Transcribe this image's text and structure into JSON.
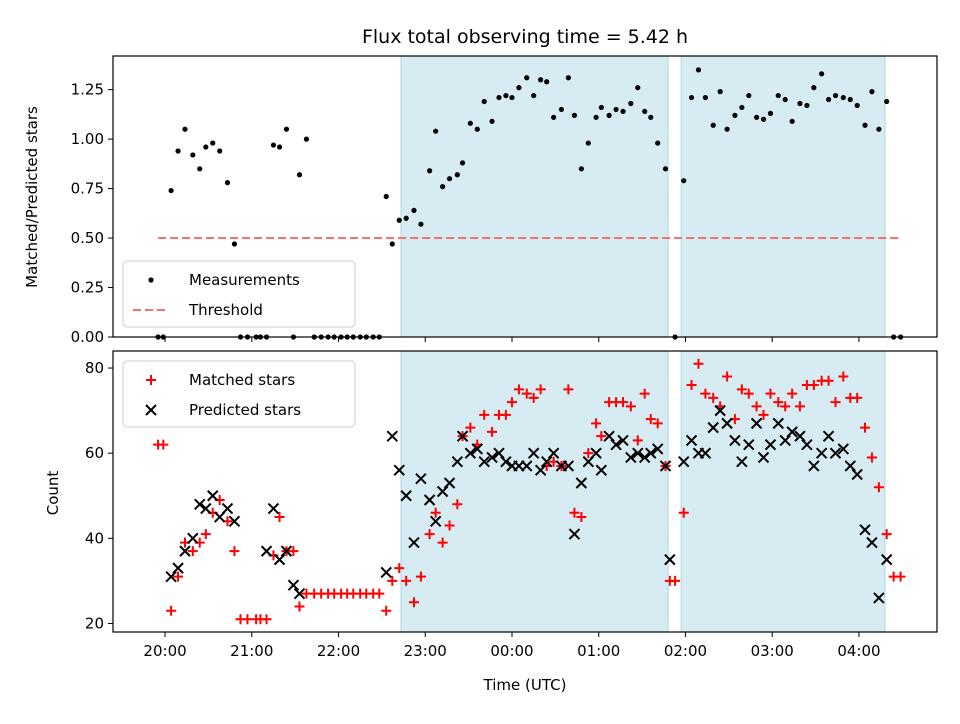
{
  "chart_data": [
    {
      "type": "scatter",
      "title": "Flux total observing time = 5.42 h",
      "xlabel": "",
      "ylabel": "Matched/Predicted stars",
      "xlim": [
        19.4,
        28.9
      ],
      "ylim": [
        0,
        1.42
      ],
      "y_ticks": [
        0,
        0.25,
        0.5,
        0.75,
        1.0,
        1.25
      ],
      "y_tick_labels": [
        "0.00",
        "0.25",
        "0.50",
        "0.75",
        "1.00",
        "1.25"
      ],
      "shaded_intervals": [
        [
          22.72,
          25.8
        ],
        [
          25.95,
          28.3
        ]
      ],
      "legend_position": "lower-left",
      "series": [
        {
          "name": "Measurements",
          "marker": "dot",
          "color": "#000000",
          "x": [
            19.92,
            19.98,
            20.07,
            20.15,
            20.23,
            20.32,
            20.4,
            20.47,
            20.55,
            20.63,
            20.72,
            20.8,
            20.87,
            20.95,
            21.05,
            21.1,
            21.17,
            21.25,
            21.32,
            21.4,
            21.48,
            21.55,
            21.63,
            21.72,
            21.8,
            21.88,
            21.95,
            22.03,
            22.1,
            22.17,
            22.25,
            22.32,
            22.4,
            22.47,
            22.55,
            22.62,
            22.7,
            22.78,
            22.87,
            22.95,
            23.05,
            23.12,
            23.2,
            23.28,
            23.37,
            23.43,
            23.52,
            23.6,
            23.68,
            23.77,
            23.85,
            23.93,
            24.0,
            24.08,
            24.17,
            24.25,
            24.33,
            24.4,
            24.48,
            24.57,
            24.65,
            24.72,
            24.8,
            24.88,
            24.97,
            25.03,
            25.12,
            25.2,
            25.28,
            25.37,
            25.45,
            25.53,
            25.6,
            25.68,
            25.77,
            25.88,
            25.98,
            26.07,
            26.15,
            26.23,
            26.32,
            26.4,
            26.48,
            26.57,
            26.65,
            26.73,
            26.82,
            26.9,
            26.98,
            27.07,
            27.15,
            27.23,
            27.32,
            27.4,
            27.48,
            27.57,
            27.65,
            27.73,
            27.82,
            27.9,
            27.98,
            28.07,
            28.15,
            28.23,
            28.32,
            28.4,
            28.48
          ],
          "y": [
            0,
            0,
            0.74,
            0.94,
            1.05,
            0.92,
            0.85,
            0.96,
            0.98,
            0.94,
            0.78,
            0.47,
            0,
            0,
            0,
            0,
            0,
            0.97,
            0.96,
            1.05,
            0,
            0.82,
            1.0,
            0,
            0,
            0,
            0,
            0,
            0,
            0,
            0,
            0,
            0,
            0,
            0.71,
            0.47,
            0.59,
            0.6,
            0.64,
            0.57,
            0.84,
            1.04,
            0.76,
            0.8,
            0.82,
            0.88,
            1.08,
            1.05,
            1.19,
            1.09,
            1.21,
            1.22,
            1.21,
            1.26,
            1.31,
            1.22,
            1.3,
            1.29,
            1.11,
            1.15,
            1.31,
            1.12,
            0.85,
            0.98,
            1.11,
            1.16,
            1.12,
            1.15,
            1.14,
            1.18,
            1.26,
            1.14,
            1.11,
            0.98,
            0.85,
            0,
            0.79,
            1.21,
            1.35,
            1.21,
            1.07,
            1.24,
            1.05,
            1.12,
            1.16,
            1.22,
            1.11,
            1.1,
            1.13,
            1.22,
            1.2,
            1.09,
            1.18,
            1.17,
            1.26,
            1.33,
            1.2,
            1.22,
            1.21,
            1.2,
            1.17,
            1.07,
            1.24,
            1.05,
            1.19,
            0,
            0
          ]
        },
        {
          "name": "Threshold",
          "line_style": "dashed",
          "color": "#f27272",
          "x": [
            19.92,
            28.48
          ],
          "y": [
            0.5,
            0.5
          ]
        }
      ]
    },
    {
      "type": "scatter",
      "title": "",
      "xlabel": "Time (UTC)",
      "ylabel": "Count",
      "xlim": [
        19.4,
        28.9
      ],
      "ylim": [
        18,
        84
      ],
      "y_ticks": [
        20,
        40,
        60,
        80
      ],
      "y_tick_labels": [
        "20",
        "40",
        "60",
        "80"
      ],
      "x_ticks": [
        20,
        21,
        22,
        23,
        24,
        25,
        26,
        27,
        28
      ],
      "x_tick_labels": [
        "20:00",
        "21:00",
        "22:00",
        "23:00",
        "00:00",
        "01:00",
        "02:00",
        "03:00",
        "04:00"
      ],
      "shaded_intervals": [
        [
          22.72,
          25.8
        ],
        [
          25.95,
          28.3
        ]
      ],
      "legend_position": "upper-left",
      "series": [
        {
          "name": "Matched stars",
          "marker": "plus",
          "color": "#ff0000",
          "x": [
            19.92,
            19.98,
            20.07,
            20.15,
            20.23,
            20.32,
            20.4,
            20.47,
            20.55,
            20.63,
            20.72,
            20.8,
            20.87,
            20.95,
            21.05,
            21.1,
            21.17,
            21.25,
            21.32,
            21.4,
            21.48,
            21.55,
            21.63,
            21.72,
            21.8,
            21.88,
            21.95,
            22.03,
            22.1,
            22.17,
            22.25,
            22.32,
            22.4,
            22.47,
            22.55,
            22.62,
            22.7,
            22.78,
            22.87,
            22.95,
            23.05,
            23.12,
            23.2,
            23.28,
            23.37,
            23.43,
            23.52,
            23.6,
            23.68,
            23.77,
            23.85,
            23.93,
            24.0,
            24.08,
            24.17,
            24.25,
            24.33,
            24.4,
            24.48,
            24.57,
            24.65,
            24.72,
            24.8,
            24.88,
            24.97,
            25.03,
            25.12,
            25.2,
            25.28,
            25.37,
            25.45,
            25.53,
            25.6,
            25.68,
            25.77,
            25.82,
            25.88,
            25.98,
            26.07,
            26.15,
            26.23,
            26.32,
            26.4,
            26.48,
            26.57,
            26.65,
            26.73,
            26.82,
            26.9,
            26.98,
            27.07,
            27.15,
            27.23,
            27.32,
            27.4,
            27.48,
            27.57,
            27.65,
            27.73,
            27.82,
            27.9,
            27.98,
            28.07,
            28.15,
            28.23,
            28.32,
            28.4,
            28.48
          ],
          "y": [
            62,
            62,
            23,
            31,
            39,
            37,
            39,
            41,
            46,
            49,
            44,
            37,
            21,
            21,
            21,
            21,
            21,
            36,
            45,
            37,
            37,
            24,
            27,
            27,
            27,
            27,
            27,
            27,
            27,
            27,
            27,
            27,
            27,
            27,
            23,
            30,
            33,
            30,
            25,
            31,
            41,
            46,
            39,
            43,
            48,
            64,
            66,
            62,
            69,
            65,
            69,
            69,
            72,
            75,
            74,
            73,
            75,
            57,
            58,
            57,
            75,
            46,
            45,
            60,
            67,
            64,
            72,
            72,
            72,
            71,
            63,
            74,
            68,
            67,
            57,
            30,
            30,
            46,
            76,
            81,
            74,
            73,
            71,
            78,
            68,
            75,
            74,
            71,
            69,
            74,
            72,
            71,
            74,
            71,
            76,
            76,
            77,
            77,
            72,
            78,
            73,
            73,
            66,
            59,
            52,
            41,
            31,
            31
          ]
        },
        {
          "name": "Predicted stars",
          "marker": "x",
          "color": "#000000",
          "x": [
            20.07,
            20.15,
            20.23,
            20.32,
            20.4,
            20.47,
            20.55,
            20.63,
            20.72,
            20.8,
            21.17,
            21.25,
            21.32,
            21.4,
            21.48,
            21.55,
            22.55,
            22.62,
            22.7,
            22.78,
            22.87,
            22.95,
            23.05,
            23.12,
            23.2,
            23.28,
            23.37,
            23.43,
            23.52,
            23.6,
            23.68,
            23.77,
            23.85,
            23.93,
            24.0,
            24.08,
            24.17,
            24.25,
            24.33,
            24.4,
            24.48,
            24.57,
            24.65,
            24.72,
            24.8,
            24.88,
            24.97,
            25.03,
            25.12,
            25.2,
            25.28,
            25.37,
            25.45,
            25.53,
            25.6,
            25.68,
            25.77,
            25.82,
            25.98,
            26.07,
            26.15,
            26.23,
            26.32,
            26.4,
            26.48,
            26.57,
            26.65,
            26.73,
            26.82,
            26.9,
            26.98,
            27.07,
            27.15,
            27.23,
            27.32,
            27.4,
            27.48,
            27.57,
            27.65,
            27.73,
            27.82,
            27.9,
            27.98,
            28.07,
            28.15,
            28.23,
            28.32
          ],
          "y": [
            31,
            33,
            37,
            40,
            48,
            47,
            50,
            45,
            47,
            44,
            37,
            47,
            35,
            37,
            29,
            27,
            32,
            64,
            56,
            50,
            39,
            54,
            49,
            44,
            51,
            53,
            58,
            64,
            60,
            61,
            58,
            59,
            60,
            58,
            57,
            57,
            57,
            60,
            56,
            58,
            60,
            57,
            57,
            41,
            53,
            58,
            60,
            56,
            64,
            62,
            63,
            59,
            60,
            59,
            60,
            61,
            57,
            35,
            58,
            63,
            60,
            60,
            66,
            70,
            67,
            63,
            58,
            62,
            67,
            59,
            62,
            67,
            63,
            65,
            64,
            62,
            57,
            60,
            64,
            60,
            61,
            57,
            55,
            42,
            39,
            26,
            35
          ]
        }
      ]
    }
  ]
}
